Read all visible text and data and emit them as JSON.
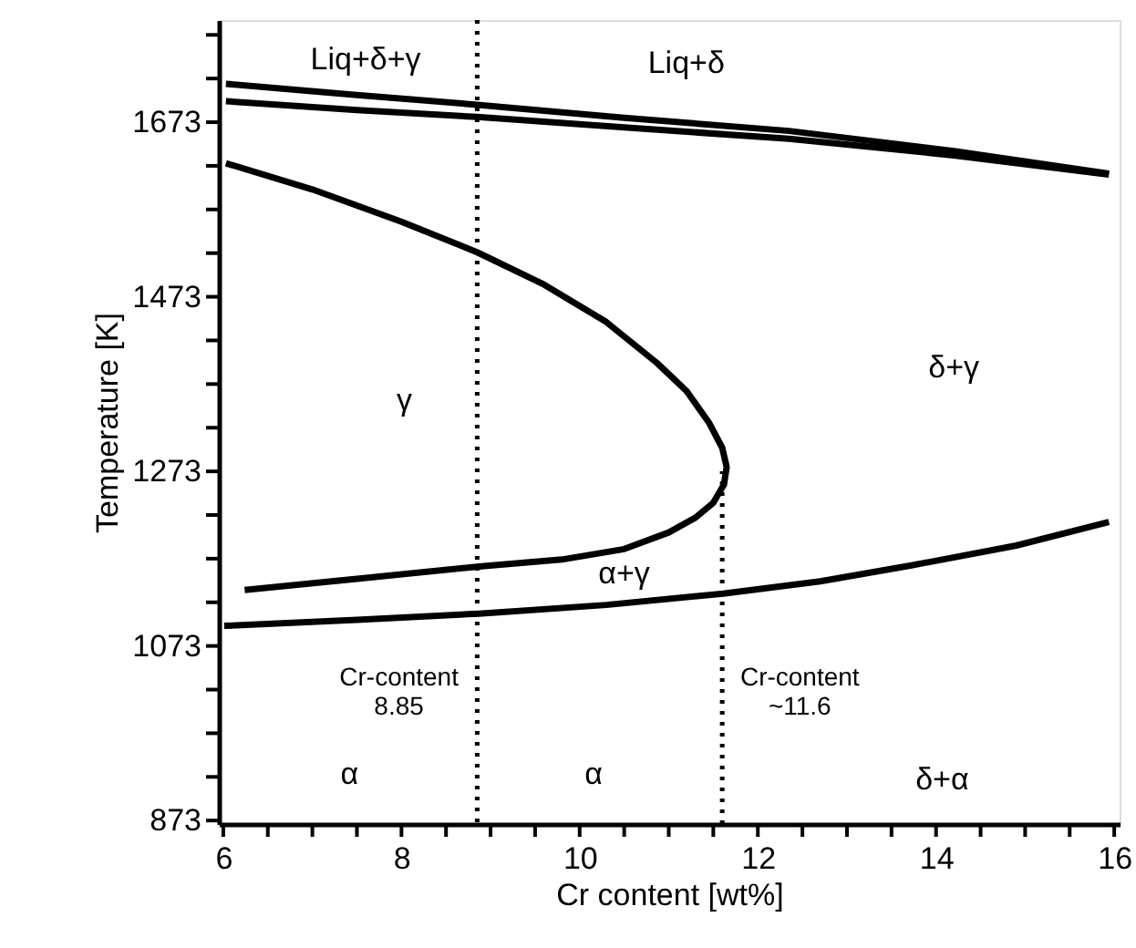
{
  "chart_data": {
    "type": "line",
    "xlabel": "Cr content [wt%]",
    "ylabel": "Temperature [K]",
    "xlim": [
      5.95,
      16.06
    ],
    "ylim": [
      869,
      1790
    ],
    "xticks": [
      6,
      {
        "value": 6.5,
        "label": null
      },
      {
        "value": 7,
        "label": null
      },
      {
        "value": 7.5,
        "label": null
      },
      8,
      {
        "value": 8.5,
        "label": null
      },
      {
        "value": 9,
        "label": null
      },
      {
        "value": 9.5,
        "label": null
      },
      10,
      {
        "value": 10.5,
        "label": null
      },
      {
        "value": 11,
        "label": null
      },
      {
        "value": 11.5,
        "label": null
      },
      12,
      {
        "value": 12.5,
        "label": null
      },
      {
        "value": 13,
        "label": null
      },
      {
        "value": 13.5,
        "label": null
      },
      14,
      {
        "value": 14.5,
        "label": null
      },
      {
        "value": 15,
        "label": null
      },
      {
        "value": 15.5,
        "label": null
      },
      16
    ],
    "yticks": [
      873,
      {
        "value": 923,
        "label": null
      },
      {
        "value": 973,
        "label": null
      },
      {
        "value": 1023,
        "label": null
      },
      1073,
      {
        "value": 1123,
        "label": null
      },
      {
        "value": 1173,
        "label": null
      },
      {
        "value": 1223,
        "label": null
      },
      1273,
      {
        "value": 1323,
        "label": null
      },
      {
        "value": 1373,
        "label": null
      },
      {
        "value": 1423,
        "label": null
      },
      1473,
      {
        "value": 1523,
        "label": null
      },
      {
        "value": 1573,
        "label": null
      },
      {
        "value": 1623,
        "label": null
      },
      1673,
      {
        "value": 1723,
        "label": null
      },
      {
        "value": 1773,
        "label": null
      }
    ],
    "grid": false,
    "marker": "none",
    "line_style": "solid",
    "series": [
      {
        "color": "#000000",
        "x": [
          6.03,
          7.5,
          8.85,
          10.5,
          12.35,
          14.2,
          15.94
        ],
        "values": [
          1717,
          1704,
          1693,
          1678,
          1663,
          1640,
          1614
        ]
      },
      {
        "color": "#000000",
        "x": [
          6.03,
          7.5,
          8.85,
          10.5,
          12.35,
          14.2,
          15.94
        ],
        "values": [
          1697,
          1687,
          1679,
          1667,
          1654,
          1635,
          1613
        ]
      },
      {
        "color": "#000000",
        "x": [
          6.03,
          7,
          8,
          8.85,
          9.6,
          10.3,
          10.87,
          11.2,
          11.45,
          11.6,
          11.65,
          11.62,
          11.5,
          11.3,
          11.0,
          10.5,
          9.8,
          8.87,
          7.5,
          6.24
        ],
        "values": [
          1626,
          1596,
          1559,
          1524,
          1487,
          1444,
          1397,
          1365,
          1329,
          1300,
          1278,
          1258,
          1237,
          1220,
          1203,
          1184,
          1172,
          1164,
          1150,
          1137
        ]
      },
      {
        "color": "#000000",
        "x": [
          6.01,
          7.5,
          8.87,
          10.3,
          11.61,
          12.7,
          13.71,
          14.9,
          15.94
        ],
        "values": [
          1096,
          1103,
          1110,
          1120,
          1133,
          1147,
          1165,
          1188,
          1215
        ]
      },
      {
        "color": "#000000",
        "line_style": "dotted",
        "x": [
          11.6,
          11.6
        ],
        "values": [
          869,
          1273
        ]
      }
    ],
    "ref_lines": [
      {
        "axis": "x",
        "value": 8.85,
        "color": "#000000",
        "line_style": "dotted"
      }
    ],
    "annotations": [
      "Liq+δ+γ",
      "Liq+δ",
      "γ",
      "δ+γ",
      "α+γ",
      "Cr-content\n8.85",
      "Cr-content\n~11.6",
      "α",
      "α",
      "δ+α"
    ]
  }
}
